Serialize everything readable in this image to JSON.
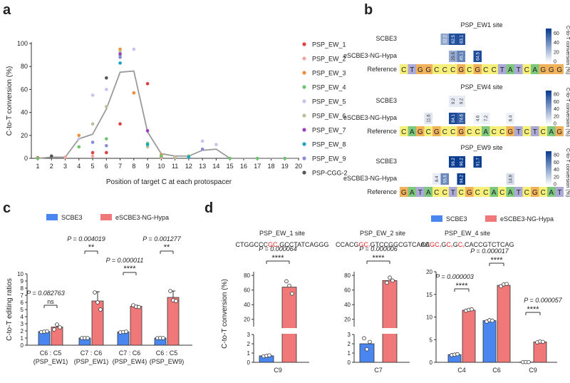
{
  "panel_letters": {
    "a": "a",
    "b": "b",
    "c": "c",
    "d": "d"
  },
  "colors": {
    "scbe3": "#4a86f0",
    "ngh": "#f07878",
    "trend": "#9a9a9a",
    "heat_hi": "#0b3d91",
    "base_A": "#7ec87e",
    "base_C": "#f6ef7a",
    "base_G": "#f2b25c",
    "base_T": "#aaa9d8"
  },
  "chart_data": [
    {
      "id": "a",
      "type": "scatter",
      "xlabel": "Position of target C at each protospacer",
      "ylabel": "C-to-T conversion (%)",
      "xlim": [
        1,
        20
      ],
      "ylim": [
        0,
        100
      ],
      "x_ticks": [
        "1",
        "2",
        "3",
        "4",
        "5",
        "6",
        "7",
        "8",
        "9",
        "10",
        "11",
        "12",
        "13",
        "14",
        "15",
        "16",
        "17",
        "18",
        "19",
        "20"
      ],
      "y_ticks": [
        "0",
        "20",
        "40",
        "60",
        "80",
        "100"
      ],
      "trend_line": {
        "x": [
          1,
          2,
          3,
          4,
          5,
          6,
          7,
          8,
          9,
          10,
          11,
          12,
          13,
          14,
          15,
          16,
          17,
          18,
          19,
          20
        ],
        "y": [
          0,
          1,
          1,
          17,
          21,
          43,
          75,
          76,
          23,
          4,
          2,
          2,
          7,
          8,
          0,
          0,
          0,
          0,
          0,
          0
        ]
      },
      "series": [
        {
          "name": "PSP_EW_1",
          "color": "#e0403e",
          "points": [
            [
              1,
              0.5
            ],
            [
              5,
              5
            ],
            [
              6,
              5
            ],
            [
              7,
              30
            ],
            [
              9,
              65
            ],
            [
              10,
              1
            ]
          ]
        },
        {
          "name": "PSP_EW_2",
          "color": "#f4a3a3",
          "points": [
            [
              3,
              1
            ],
            [
              5,
              2
            ],
            [
              8,
              57
            ],
            [
              10,
              1
            ]
          ]
        },
        {
          "name": "PSP_EW_3",
          "color": "#f08b3c",
          "points": [
            [
              4,
              20
            ],
            [
              7,
              95
            ],
            [
              8,
              57
            ],
            [
              10,
              3
            ]
          ]
        },
        {
          "name": "PSP_EW_4",
          "color": "#6fc36f",
          "points": [
            [
              1,
              0
            ],
            [
              4,
              10
            ],
            [
              6,
              17
            ],
            [
              7,
              90
            ],
            [
              9,
              13
            ],
            [
              10,
              2
            ],
            [
              12,
              2
            ],
            [
              15,
              0
            ],
            [
              17,
              0
            ],
            [
              19,
              0
            ]
          ]
        },
        {
          "name": "PSP_EW_5",
          "color": "#c7c2ec",
          "points": [
            [
              4,
              17
            ],
            [
              5,
              55
            ],
            [
              6,
              60
            ],
            [
              7,
              83
            ],
            [
              8,
              95
            ],
            [
              13,
              15
            ],
            [
              14,
              12
            ]
          ]
        },
        {
          "name": "PSP_EW_6",
          "color": "#bebe9a",
          "points": [
            [
              5,
              30
            ],
            [
              6,
              45
            ],
            [
              7,
              93
            ],
            [
              9,
              10
            ],
            [
              11,
              1
            ]
          ]
        },
        {
          "name": "PSP_EW_7",
          "color": "#9b3fc2",
          "points": [
            [
              7,
              91
            ],
            [
              9,
              24
            ]
          ]
        },
        {
          "name": "PSP_EW_8",
          "color": "#1aa3c4",
          "points": [
            [
              7,
              83
            ],
            [
              9,
              12
            ],
            [
              12,
              1
            ]
          ]
        },
        {
          "name": "PSP_EW_9",
          "color": "#8a8adb",
          "points": [
            [
              5,
              14
            ],
            [
              6,
              11
            ],
            [
              7,
              88
            ],
            [
              13,
              8
            ]
          ]
        },
        {
          "name": "PSP-CGG-2",
          "color": "#555555",
          "points": [
            [
              2,
              2
            ],
            [
              6,
              70
            ]
          ]
        }
      ]
    },
    {
      "id": "b",
      "type": "heatmap",
      "colorbar_label": "C-to-T conversion (%)",
      "row_labels": [
        "SCBE3",
        "eSCBE3-NG-Hypa",
        "Reference"
      ],
      "heatmaps": [
        {
          "title": "PSP_EW1 site",
          "vmax": 70,
          "cb_ticks": [
            "0",
            "20",
            "40",
            "60"
          ],
          "reference": "CTGGCCCGCGCCTATCAGGG",
          "scbe3": [
            0,
            0,
            0,
            0,
            0,
            32.2,
            62.5,
            63.1,
            0,
            0,
            0,
            0,
            0,
            0,
            0,
            0,
            0,
            0,
            0,
            0
          ],
          "ngh": [
            0,
            0,
            0,
            0,
            0,
            0,
            29.8,
            45.1,
            0,
            64.5,
            0,
            0,
            0,
            0,
            0,
            0,
            0,
            0,
            0,
            0
          ]
        },
        {
          "title": "PSP_EW4 site",
          "vmax": 90,
          "cb_ticks": [
            "0",
            "20",
            "40",
            "60",
            "80"
          ],
          "reference": "CAGCGCCGCCACCGTCTCAG",
          "scbe3": [
            0,
            0,
            0,
            0,
            0,
            0,
            9.2,
            9.2,
            0,
            0,
            0,
            0,
            0,
            0,
            0,
            0,
            0,
            0,
            0,
            0
          ],
          "ngh": [
            0,
            0,
            0,
            11.6,
            0,
            0,
            84.1,
            74.6,
            0,
            4.6,
            7.2,
            0,
            0,
            6.4,
            0,
            0,
            0,
            0,
            0,
            0
          ]
        },
        {
          "title": "PSP_EW9 site",
          "vmax": 90,
          "cb_ticks": [
            "0",
            "20",
            "40",
            "60",
            "80"
          ],
          "reference": "GATACCTCGCCACATCGCAT",
          "scbe3": [
            0,
            0,
            0,
            0,
            0,
            0,
            96.2,
            96.2,
            0,
            91.7,
            0,
            0,
            0,
            0,
            0,
            0,
            0,
            0,
            0,
            0
          ],
          "ngh": [
            0,
            0,
            0,
            0,
            8.4,
            55.6,
            0,
            94.2,
            0,
            0,
            0,
            0,
            0,
            14.9,
            0,
            0,
            0,
            0,
            0,
            0
          ]
        }
      ]
    },
    {
      "id": "c",
      "type": "bar",
      "legend": [
        "SCBE3",
        "eSCBE3-NG-Hypa"
      ],
      "ylabel": "C-to-T editing ratios",
      "ylim": [
        0,
        10
      ],
      "y_ticks": [
        "0",
        "1",
        "2",
        "3",
        "4",
        "5",
        "6",
        "7",
        "8",
        "9",
        "10"
      ],
      "categories": [
        "C6 : C5",
        "C7 : C6",
        "C7 : C6",
        "C6 : C5"
      ],
      "sublabels": [
        "(PSP_EW1)",
        "(PSP_EW1)",
        "(PSP_EW4)",
        "(PSP_EW9)"
      ],
      "series": [
        {
          "name": "SCBE3",
          "values": [
            1.9,
            1.0,
            1.85,
            1.0
          ],
          "sd": [
            0.05,
            0.05,
            0.05,
            0.05
          ],
          "points": [
            [
              1.85,
              1.9,
              1.95
            ],
            [
              1.0,
              1.0,
              1.0
            ],
            [
              1.8,
              1.85,
              1.9
            ],
            [
              1.0,
              1.0,
              1.0
            ]
          ]
        },
        {
          "name": "eSCBE3-NG-Hypa",
          "values": [
            2.55,
            6.2,
            5.45,
            6.7
          ],
          "sd": [
            0.35,
            1.3,
            0.15,
            0.9
          ],
          "points": [
            [
              2.2,
              2.9,
              2.5
            ],
            [
              7.4,
              6.0,
              5.0
            ],
            [
              5.6,
              5.4,
              5.35
            ],
            [
              7.6,
              6.3,
              6.2
            ]
          ]
        }
      ],
      "p_values": [
        "P = 0.082763",
        "P = 0.004019",
        "P = 0.000011",
        "P = 0.001277"
      ],
      "significance": [
        "ns",
        "**",
        "****",
        "**"
      ]
    },
    {
      "id": "d",
      "type": "bar",
      "legend": [
        "SCBE3",
        "eSCBE3-NG-Hypa"
      ],
      "ylabel": "C-to-T conversion (%)",
      "panels": [
        {
          "title": "PSP_EW_1 site",
          "sequence": [
            [
              "CTGGCCC",
              false
            ],
            [
              "GC",
              true
            ],
            [
              "₉",
              true
            ],
            [
              "GCCTATCAGGG",
              false
            ]
          ],
          "y_lower_ticks": [
            "0",
            "1",
            "2",
            "3"
          ],
          "y_upper_ticks": [
            "20",
            "40",
            "60",
            "80"
          ],
          "categories": [
            "C9"
          ],
          "scbe3": [
            0.7
          ],
          "ngh": [
            64
          ],
          "scbe3_points": [
            [
              0.65,
              0.7,
              0.75
            ]
          ],
          "ngh_points": [
            [
              72,
              66,
              55
            ]
          ],
          "p_values": [
            "P = 0.000064"
          ],
          "significance": [
            "****"
          ]
        },
        {
          "title": "PSP_EW_2 site",
          "sequence": [
            [
              "CCACG",
              false
            ],
            [
              "GC",
              true
            ],
            [
              "₇",
              true
            ],
            [
              "GTCCGGCGTCAAC",
              false
            ]
          ],
          "y_lower_ticks": [
            "0",
            "1",
            "2",
            "3"
          ],
          "y_upper_ticks": [
            "20",
            "40",
            "60",
            "80"
          ],
          "categories": [
            "C7"
          ],
          "scbe3": [
            2.0
          ],
          "ngh": [
            73
          ],
          "scbe3_points": [
            [
              2.6,
              1.4,
              2.2
            ]
          ],
          "ngh_points": [
            [
              70,
              77,
              73
            ]
          ],
          "p_values": [
            "P = 0.000006"
          ],
          "significance": [
            "****"
          ]
        },
        {
          "title": "PSP_EW_4 site",
          "sequence": [
            [
              "CA",
              false
            ],
            [
              "GC",
              true
            ],
            [
              "₄",
              true
            ],
            [
              "G",
              false
            ],
            [
              "C",
              true
            ],
            [
              "₆",
              true
            ],
            [
              "G",
              false
            ],
            [
              "C",
              true
            ],
            [
              "₉",
              true
            ],
            [
              "CACCGTCTCAG",
              false
            ]
          ],
          "y_ticks": [
            "0",
            "5",
            "10",
            "15",
            "20"
          ],
          "categories": [
            "C4",
            "C6",
            "C9"
          ],
          "scbe3": [
            1.7,
            9.2,
            0.05
          ],
          "ngh": [
            11.5,
            17.0,
            4.5
          ],
          "scbe3_points": [
            [
              1.6,
              1.7,
              1.8
            ],
            [
              9.0,
              9.3,
              9.2
            ],
            [
              0.05,
              0.05,
              0.05
            ]
          ],
          "ngh_points": [
            [
              11.4,
              11.6,
              11.7
            ],
            [
              16.8,
              17.2,
              17.3
            ],
            [
              4.4,
              4.6,
              4.5
            ]
          ],
          "p_values": [
            "P = 0.000003",
            "P = 0.000017",
            "P = 0.000057"
          ],
          "significance": [
            "****",
            "****",
            "****"
          ]
        }
      ]
    }
  ]
}
